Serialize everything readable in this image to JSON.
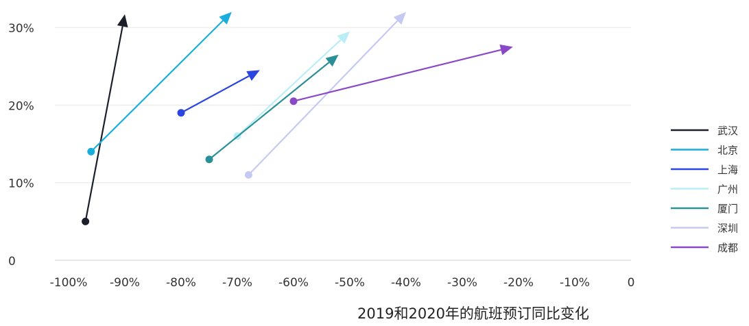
{
  "chart_data": {
    "type": "arrow-scatter",
    "title": "",
    "xlabel": "2019和2020年的航班预订同比变化",
    "ylabel": "",
    "x_ticks": [
      "-100%",
      "-90%",
      "-80%",
      "-70%",
      "-60%",
      "-50%",
      "-40%",
      "-30%",
      "-20%",
      "-10%",
      "0"
    ],
    "y_ticks": [
      "0",
      "10%",
      "20%",
      "30%"
    ],
    "xlim": [
      -100,
      0
    ],
    "ylim": [
      0,
      32
    ],
    "grid": true,
    "legend_position": "right",
    "series": [
      {
        "name": "武汉",
        "color": "#1b1f2a",
        "start": [
          -97,
          5
        ],
        "end": [
          -90,
          31.7
        ]
      },
      {
        "name": "北京",
        "color": "#19aedc",
        "start": [
          -96,
          14
        ],
        "end": [
          -71,
          32
        ]
      },
      {
        "name": "上海",
        "color": "#2a45e0",
        "start": [
          -80,
          19
        ],
        "end": [
          -66,
          24.5
        ]
      },
      {
        "name": "广州",
        "color": "#b9eef7",
        "start": [
          -70,
          16
        ],
        "end": [
          -50,
          29.5
        ]
      },
      {
        "name": "厦门",
        "color": "#2a8f96",
        "start": [
          -75,
          13
        ],
        "end": [
          -52,
          26.5
        ]
      },
      {
        "name": "深圳",
        "color": "#c6c9f2",
        "start": [
          -68,
          11
        ],
        "end": [
          -40,
          32
        ]
      },
      {
        "name": "成都",
        "color": "#8a48c6",
        "start": [
          -60,
          20.5
        ],
        "end": [
          -21,
          27.5
        ]
      }
    ]
  }
}
